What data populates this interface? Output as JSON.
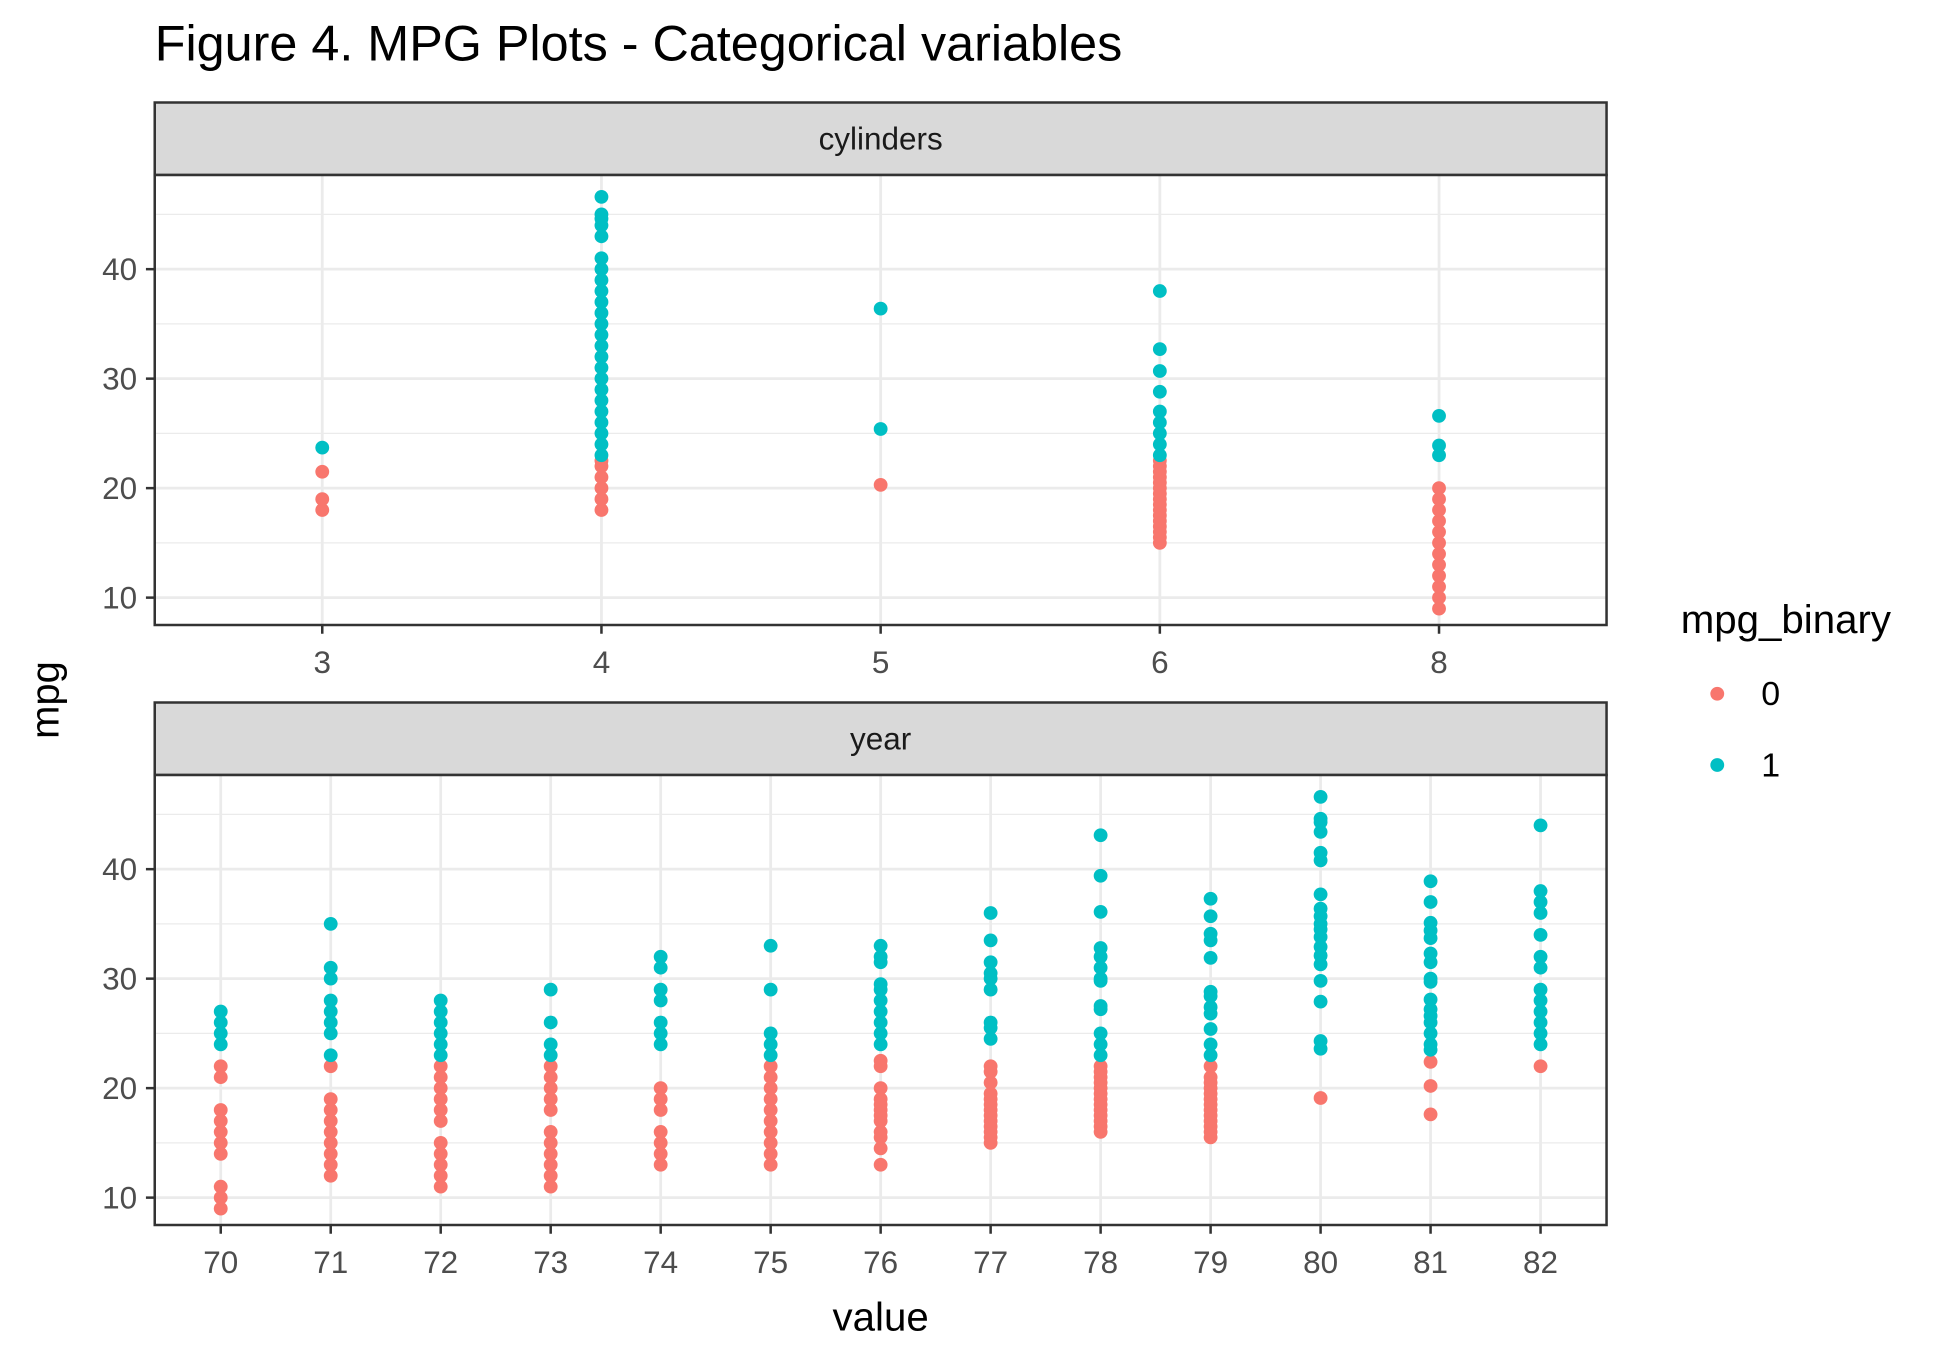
{
  "figure": {
    "title": "Figure 4. MPG Plots - Categorical variables",
    "x_label": "value",
    "y_label": "mpg",
    "legend_title": "mpg_binary"
  },
  "chart_data": [
    {
      "type": "scatter",
      "title": "cylinders",
      "categories": [
        "3",
        "4",
        "5",
        "6",
        "8"
      ],
      "ylim": [
        7.5,
        48.6
      ],
      "yticks": [
        10,
        20,
        30,
        40
      ],
      "grid": true,
      "series": [
        {
          "name": "0",
          "color": "#F8766D",
          "x": [
            "3",
            "3",
            "3",
            "4",
            "4",
            "4",
            "4",
            "4",
            "4",
            "5",
            "6",
            "6",
            "6",
            "6",
            "6",
            "6",
            "6",
            "6",
            "6",
            "6",
            "6",
            "6",
            "6",
            "6",
            "6",
            "6",
            "8",
            "8",
            "8",
            "8",
            "8",
            "8",
            "8",
            "8",
            "8",
            "8",
            "8",
            "8"
          ],
          "values": [
            18,
            19,
            21.5,
            18,
            19,
            20,
            21,
            22,
            22.5,
            20.3,
            15,
            15.5,
            16,
            16.5,
            17,
            17.5,
            18,
            18.5,
            19,
            19.5,
            20,
            20.5,
            21,
            21.5,
            22,
            22.5,
            9,
            10,
            11,
            12,
            13,
            14,
            15,
            16,
            17,
            18,
            19,
            20
          ]
        },
        {
          "name": "1",
          "color": "#00BFC4",
          "x": [
            "3",
            "4",
            "4",
            "4",
            "4",
            "4",
            "4",
            "4",
            "4",
            "4",
            "4",
            "4",
            "4",
            "4",
            "4",
            "4",
            "4",
            "4",
            "4",
            "4",
            "4",
            "4",
            "4",
            "4",
            "4",
            "5",
            "5",
            "6",
            "6",
            "6",
            "6",
            "6",
            "6",
            "6",
            "6",
            "6",
            "8",
            "8",
            "8"
          ],
          "values": [
            23.7,
            23,
            24,
            25,
            26,
            27,
            28,
            29,
            30,
            31,
            32,
            33,
            34,
            35,
            36,
            37,
            38,
            39,
            40,
            41,
            43,
            44,
            44.6,
            45,
            46.6,
            25.4,
            36.4,
            23,
            24,
            25,
            26,
            27,
            28.8,
            30.7,
            32.7,
            38,
            23,
            23.9,
            26.6
          ]
        }
      ]
    },
    {
      "type": "scatter",
      "title": "year",
      "categories": [
        "70",
        "71",
        "72",
        "73",
        "74",
        "75",
        "76",
        "77",
        "78",
        "79",
        "80",
        "81",
        "82"
      ],
      "ylim": [
        7.5,
        48.6
      ],
      "yticks": [
        10,
        20,
        30,
        40
      ],
      "grid": true,
      "series": [
        {
          "name": "0",
          "color": "#F8766D",
          "x": [
            "70",
            "70",
            "70",
            "70",
            "70",
            "70",
            "70",
            "70",
            "70",
            "70",
            "71",
            "71",
            "71",
            "71",
            "71",
            "71",
            "71",
            "71",
            "71",
            "72",
            "72",
            "72",
            "72",
            "72",
            "72",
            "72",
            "72",
            "72",
            "72",
            "72",
            "73",
            "73",
            "73",
            "73",
            "73",
            "73",
            "73",
            "73",
            "73",
            "73",
            "73",
            "74",
            "74",
            "74",
            "74",
            "74",
            "74",
            "74",
            "75",
            "75",
            "75",
            "75",
            "75",
            "75",
            "75",
            "75",
            "75",
            "75",
            "76",
            "76",
            "76",
            "76",
            "76",
            "76",
            "76",
            "76",
            "76",
            "76",
            "76",
            "76",
            "77",
            "77",
            "77",
            "77",
            "77",
            "77",
            "77",
            "77",
            "77",
            "77",
            "77",
            "77",
            "77",
            "78",
            "78",
            "78",
            "78",
            "78",
            "78",
            "78",
            "78",
            "78",
            "78",
            "78",
            "78",
            "78",
            "79",
            "79",
            "79",
            "79",
            "79",
            "79",
            "79",
            "79",
            "79",
            "79",
            "79",
            "79",
            "79",
            "80",
            "81",
            "81",
            "81",
            "82"
          ],
          "values": [
            9,
            10,
            11,
            14,
            15,
            16,
            17,
            18,
            21,
            22,
            12,
            13,
            14,
            15,
            16,
            17,
            18,
            19,
            22,
            11,
            12,
            13,
            14,
            15,
            17,
            18,
            19,
            20,
            21,
            22,
            11,
            12,
            13,
            14,
            15,
            16,
            18,
            19,
            20,
            21,
            22,
            13,
            14,
            15,
            16,
            18,
            19,
            20,
            13,
            14,
            15,
            16,
            17,
            18,
            19,
            20,
            21,
            22,
            13,
            14.5,
            15.5,
            16,
            17,
            17.5,
            18,
            18.5,
            19,
            20,
            22,
            22.5,
            15,
            15.5,
            16,
            16.5,
            17,
            17.5,
            18,
            18.5,
            19,
            19.5,
            20.5,
            21.5,
            22,
            16,
            16.5,
            17,
            17.5,
            18,
            18.5,
            19,
            19.5,
            20,
            20.5,
            21,
            21.5,
            22,
            15.5,
            16,
            16.5,
            17,
            17.5,
            18,
            18.5,
            19,
            19.5,
            20,
            20.5,
            21,
            22,
            19.1,
            17.6,
            20.2,
            22.4,
            22
          ]
        },
        {
          "name": "1",
          "color": "#00BFC4",
          "x": [
            "70",
            "70",
            "70",
            "70",
            "71",
            "71",
            "71",
            "71",
            "71",
            "71",
            "71",
            "71",
            "72",
            "72",
            "72",
            "72",
            "72",
            "72",
            "73",
            "73",
            "73",
            "73",
            "74",
            "74",
            "74",
            "74",
            "74",
            "74",
            "74",
            "75",
            "75",
            "75",
            "75",
            "75",
            "76",
            "76",
            "76",
            "76",
            "76",
            "76",
            "76",
            "76",
            "76",
            "76",
            "77",
            "77",
            "77",
            "77",
            "77",
            "77",
            "77",
            "77",
            "77",
            "78",
            "78",
            "78",
            "78",
            "78",
            "78",
            "78",
            "78",
            "78",
            "78",
            "78",
            "78",
            "78",
            "79",
            "79",
            "79",
            "79",
            "79",
            "79",
            "79",
            "79",
            "79",
            "79",
            "79",
            "79",
            "80",
            "80",
            "80",
            "80",
            "80",
            "80",
            "80",
            "80",
            "80",
            "80",
            "80",
            "80",
            "80",
            "80",
            "80",
            "80",
            "80",
            "80",
            "80",
            "81",
            "81",
            "81",
            "81",
            "81",
            "81",
            "81",
            "81",
            "81",
            "81",
            "81",
            "81",
            "81",
            "81",
            "81",
            "81",
            "82",
            "82",
            "82",
            "82",
            "82",
            "82",
            "82",
            "82",
            "82",
            "82",
            "82",
            "82",
            "82"
          ],
          "values": [
            24,
            25,
            26,
            27,
            23,
            25,
            26,
            27,
            28,
            30,
            31,
            35,
            23,
            24,
            25,
            26,
            27,
            28,
            23,
            24,
            26,
            29,
            24,
            25,
            26,
            28,
            29,
            31,
            32,
            23,
            24,
            25,
            29,
            33,
            24,
            25,
            26,
            27,
            28,
            29,
            29.5,
            31.5,
            32,
            33,
            24.5,
            25.5,
            26,
            29,
            30,
            30.5,
            31.5,
            33.5,
            36,
            23,
            24,
            25,
            27.2,
            27.5,
            29.8,
            30,
            31,
            32,
            32.8,
            36.1,
            39.4,
            43.1,
            23,
            24,
            25.4,
            26.8,
            27.4,
            28.4,
            28.8,
            31.9,
            33.5,
            34.1,
            35.7,
            37.3,
            23.6,
            24.3,
            27.9,
            29.8,
            31.3,
            32.1,
            32.9,
            33.8,
            34.5,
            35,
            35.7,
            36.4,
            37.7,
            40.8,
            41.5,
            43.4,
            44.3,
            44.6,
            46.6,
            23.5,
            24,
            25,
            26,
            26.6,
            27.2,
            28.1,
            29.7,
            30,
            31.5,
            32.3,
            33.7,
            34.4,
            35.1,
            37,
            38.9,
            24,
            25,
            26,
            27,
            28,
            29,
            31,
            32,
            34,
            36,
            37,
            38,
            44
          ]
        }
      ]
    }
  ]
}
